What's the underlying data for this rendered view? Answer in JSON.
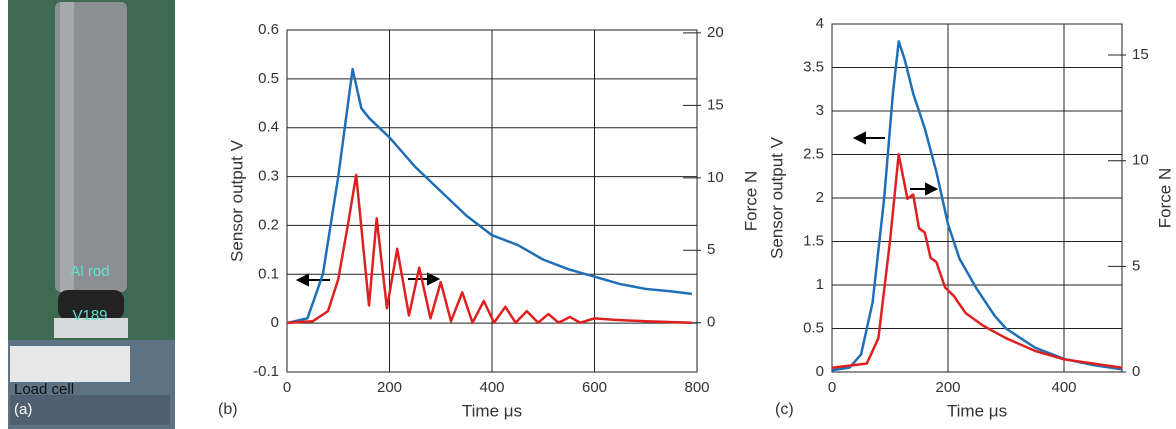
{
  "photo": {
    "panel_label": "(a)",
    "labels": [
      "Al rod",
      "V189",
      "Load cell"
    ]
  },
  "chart_data": [
    {
      "type": "line",
      "panel_label": "(b)",
      "x_label": "Time μs",
      "y_label": "Sensor output  V",
      "y2_label": "Force  N",
      "xlim": [
        0,
        800
      ],
      "xticks": [
        0,
        200,
        400,
        600,
        800
      ],
      "ylim": [
        -0.1,
        0.6
      ],
      "yticks": [
        -0.1,
        0,
        0.1,
        0.2,
        0.3,
        0.4,
        0.5,
        0.6
      ],
      "y2lim": [
        -3.4,
        20.2
      ],
      "y2ticks": [
        0,
        5,
        10,
        15,
        20
      ],
      "grid": true,
      "series": [
        {
          "color": "#1f6fb8",
          "axis": "y",
          "x": [
            0,
            40,
            70,
            100,
            128,
            145,
            160,
            200,
            250,
            300,
            350,
            400,
            450,
            500,
            550,
            600,
            650,
            700,
            750,
            790
          ],
          "values": [
            0,
            0.01,
            0.1,
            0.3,
            0.52,
            0.44,
            0.42,
            0.38,
            0.32,
            0.27,
            0.22,
            0.18,
            0.16,
            0.13,
            0.11,
            0.095,
            0.08,
            0.07,
            0.065,
            0.06
          ]
        },
        {
          "color": "#e02020",
          "axis": "y2",
          "x": [
            0,
            50,
            80,
            100,
            120,
            135,
            160,
            175,
            195,
            215,
            238,
            258,
            280,
            300,
            320,
            342,
            362,
            384,
            404,
            426,
            446,
            468,
            490,
            510,
            530,
            552,
            572,
            600,
            640,
            700,
            790
          ],
          "values": [
            0,
            0.1,
            0.8,
            3,
            7,
            10.2,
            1.2,
            7.2,
            1.0,
            5.1,
            0.5,
            3.8,
            0.3,
            2.8,
            0.1,
            2.1,
            0,
            1.5,
            0,
            1.1,
            0,
            0.8,
            0,
            0.6,
            0,
            0.4,
            0,
            0.3,
            0.2,
            0.1,
            0
          ]
        }
      ]
    },
    {
      "type": "line",
      "panel_label": "(c)",
      "x_label": "Time μs",
      "y_label": "Sensor output  V",
      "y2_label": "Force  N",
      "xlim": [
        0,
        500
      ],
      "xticks": [
        0,
        200,
        400
      ],
      "ylim": [
        0,
        4
      ],
      "yticks": [
        0,
        0.5,
        1,
        1.5,
        2,
        2.5,
        3,
        3.5,
        4
      ],
      "y2lim": [
        0,
        16.47
      ],
      "y2ticks": [
        0,
        5,
        10,
        15
      ],
      "grid": true,
      "series": [
        {
          "color": "#1f6fb8",
          "axis": "y",
          "x": [
            0,
            30,
            50,
            70,
            90,
            105,
            115,
            125,
            140,
            160,
            180,
            200,
            220,
            250,
            280,
            300,
            350,
            400,
            450,
            500
          ],
          "values": [
            0.02,
            0.05,
            0.2,
            0.8,
            2.0,
            3.2,
            3.8,
            3.6,
            3.2,
            2.8,
            2.3,
            1.7,
            1.3,
            0.95,
            0.65,
            0.5,
            0.28,
            0.15,
            0.08,
            0.03
          ]
        },
        {
          "color": "#e02020",
          "axis": "y2",
          "x": [
            0,
            60,
            80,
            100,
            115,
            130,
            140,
            150,
            160,
            170,
            180,
            195,
            210,
            230,
            260,
            300,
            350,
            400,
            450,
            500
          ],
          "values": [
            0.2,
            0.4,
            1.6,
            6.2,
            10.3,
            8.2,
            8.4,
            6.8,
            6.6,
            5.4,
            5.2,
            4.0,
            3.6,
            2.8,
            2.2,
            1.6,
            1.0,
            0.6,
            0.4,
            0.2
          ]
        }
      ]
    }
  ]
}
